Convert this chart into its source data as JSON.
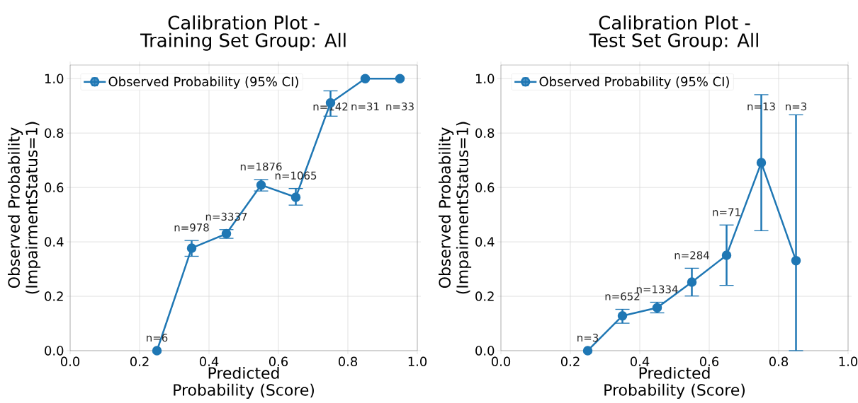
{
  "chart_data": [
    {
      "type": "line",
      "title": "Calibration Plot -",
      "subtitle": "Training Set Group: All",
      "xlabel": "Predicted Probability (Score)",
      "ylabel": "Observed Probability (ImpairmentStatus=1)",
      "x": [
        0.25,
        0.35,
        0.45,
        0.55,
        0.65,
        0.75,
        0.85,
        0.95
      ],
      "series": [
        {
          "name": "Observed Probability (95% CI)",
          "color": "#1f77b4",
          "values": [
            0.0,
            0.377,
            0.43,
            0.609,
            0.564,
            0.911,
            1.0,
            1.0
          ],
          "errors": [
            null,
            [
              0.347,
              0.405
            ],
            [
              0.413,
              0.445
            ],
            [
              0.587,
              0.629
            ],
            [
              0.535,
              0.596
            ],
            [
              0.862,
              0.955
            ],
            null,
            null
          ]
        }
      ],
      "annotations": [
        "n=6",
        "n=978",
        "n=3337",
        "n=1876",
        "n=1065",
        "n=142",
        "n=31",
        "n=33"
      ],
      "xlim": [
        0,
        1
      ],
      "ylim": [
        0,
        1.05
      ],
      "xticks": [
        {
          "value": 0,
          "label": "0.0"
        },
        {
          "value": 0.2,
          "label": "0.2"
        },
        {
          "value": 0.4,
          "label": "0.4"
        },
        {
          "value": 0.6,
          "label": "0.6"
        },
        {
          "value": 0.8,
          "label": "0.8"
        },
        {
          "value": 1,
          "label": "1.0"
        }
      ],
      "yticks": [
        {
          "value": 0,
          "label": "0.0"
        },
        {
          "value": 0.2,
          "label": "0.2"
        },
        {
          "value": 0.4,
          "label": "0.4"
        },
        {
          "value": 0.6,
          "label": "0.6"
        },
        {
          "value": 0.8,
          "label": "0.8"
        },
        {
          "value": 1,
          "label": "1.0"
        }
      ],
      "grid": true,
      "legend": "top left",
      "marker": "circle",
      "line_style": "solid"
    },
    {
      "type": "line",
      "title": "Calibration Plot -",
      "subtitle": "Test Set Group: All",
      "xlabel": "Predicted Probability (Score)",
      "ylabel": "Observed Probability (ImpairmentStatus=1)",
      "x": [
        0.25,
        0.35,
        0.45,
        0.55,
        0.65,
        0.75,
        0.85
      ],
      "series": [
        {
          "name": "Observed Probability (95% CI)",
          "color": "#1f77b4",
          "values": [
            0.0,
            0.128,
            0.158,
            0.252,
            0.351,
            0.691,
            0.331
          ],
          "errors": [
            null,
            [
              0.101,
              0.152
            ],
            [
              0.139,
              0.178
            ],
            [
              0.201,
              0.303
            ],
            [
              0.24,
              0.462
            ],
            [
              0.441,
              0.941
            ],
            [
              0.0,
              0.867
            ]
          ]
        }
      ],
      "annotations": [
        "n=3",
        "n=652",
        "n=1334",
        "n=284",
        "n=71",
        "n=13",
        "n=3"
      ],
      "xlim": [
        0,
        1
      ],
      "ylim": [
        0,
        1.05
      ],
      "xticks": [
        {
          "value": 0,
          "label": "0.0"
        },
        {
          "value": 0.2,
          "label": "0.2"
        },
        {
          "value": 0.4,
          "label": "0.4"
        },
        {
          "value": 0.6,
          "label": "0.6"
        },
        {
          "value": 0.8,
          "label": "0.8"
        },
        {
          "value": 1,
          "label": "1.0"
        }
      ],
      "yticks": [
        {
          "value": 0,
          "label": "0.0"
        },
        {
          "value": 0.2,
          "label": "0.2"
        },
        {
          "value": 0.4,
          "label": "0.4"
        },
        {
          "value": 0.6,
          "label": "0.6"
        },
        {
          "value": 0.8,
          "label": "0.8"
        },
        {
          "value": 1,
          "label": "1.0"
        }
      ],
      "grid": true,
      "legend": "top left",
      "marker": "circle",
      "line_style": "solid"
    }
  ]
}
